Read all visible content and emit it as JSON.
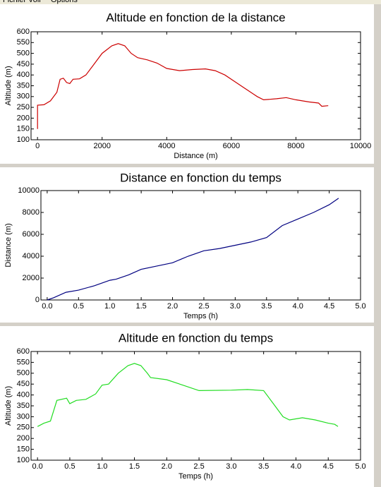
{
  "menu": [
    "Fichier",
    "Voir",
    "Options"
  ],
  "chart_data": [
    {
      "type": "line",
      "title": "Altitude en fonction de la distance",
      "xlabel": "Distance (m)",
      "ylabel": "Altitude (m)",
      "color": "#cc0000",
      "x": [
        0,
        0,
        200,
        400,
        600,
        700,
        800,
        900,
        1000,
        1100,
        1300,
        1500,
        1700,
        2000,
        2300,
        2500,
        2700,
        2900,
        3100,
        3400,
        3700,
        4000,
        4400,
        4800,
        5200,
        5500,
        5800,
        6100,
        6400,
        6700,
        6800,
        7000,
        7400,
        7700,
        8000,
        8400,
        8700,
        8800,
        9000
      ],
      "values": [
        150,
        260,
        262,
        280,
        320,
        380,
        385,
        365,
        360,
        380,
        382,
        400,
        440,
        500,
        535,
        545,
        535,
        500,
        480,
        470,
        455,
        430,
        420,
        425,
        428,
        420,
        400,
        370,
        340,
        310,
        300,
        285,
        290,
        295,
        285,
        275,
        270,
        255,
        258
      ],
      "xlim": [
        -200,
        10000
      ],
      "xticks": [
        0,
        2000,
        4000,
        6000,
        8000,
        10000
      ],
      "ylim": [
        100,
        600
      ],
      "yticks": [
        100,
        150,
        200,
        250,
        300,
        350,
        400,
        450,
        500,
        550,
        600
      ]
    },
    {
      "type": "line",
      "title": "Distance en fonction du temps",
      "xlabel": "Temps (h)",
      "ylabel": "Distance (m)",
      "color": "#000080",
      "x": [
        0,
        0.1,
        0.3,
        0.5,
        0.75,
        1.0,
        1.1,
        1.3,
        1.5,
        1.75,
        2.0,
        2.25,
        2.5,
        2.75,
        3.0,
        3.25,
        3.5,
        3.75,
        4.0,
        4.25,
        4.5,
        4.65
      ],
      "values": [
        0,
        200,
        700,
        900,
        1300,
        1800,
        1900,
        2300,
        2800,
        3100,
        3400,
        4000,
        4500,
        4700,
        5000,
        5300,
        5700,
        6800,
        7400,
        8000,
        8700,
        9300
      ],
      "xlim": [
        -0.1,
        5.0
      ],
      "xticks": [
        {
          "value": 0,
          "label": "0.0"
        },
        0.5,
        {
          "value": 1,
          "label": "1.0"
        },
        1.5,
        {
          "value": 2,
          "label": "2.0"
        },
        2.5,
        {
          "value": 3,
          "label": "3.0"
        },
        3.5,
        {
          "value": 4,
          "label": "4.0"
        },
        4.5,
        {
          "value": 5,
          "label": "5.0"
        }
      ],
      "ylim": [
        0,
        10000
      ],
      "yticks": [
        0,
        2000,
        4000,
        6000,
        8000,
        10000
      ]
    },
    {
      "type": "line",
      "title": "Altitude en fonction du temps",
      "xlabel": "Temps (h)",
      "ylabel": "Altitude (m)",
      "color": "#22dd22",
      "x": [
        0,
        0.1,
        0.2,
        0.3,
        0.45,
        0.5,
        0.6,
        0.75,
        0.9,
        1.0,
        1.1,
        1.25,
        1.4,
        1.5,
        1.6,
        1.7,
        1.75,
        2.0,
        2.25,
        2.5,
        3.0,
        3.25,
        3.5,
        3.65,
        3.8,
        3.9,
        4.1,
        4.3,
        4.5,
        4.6,
        4.65
      ],
      "values": [
        255,
        270,
        280,
        375,
        385,
        360,
        375,
        380,
        405,
        445,
        450,
        500,
        535,
        545,
        535,
        500,
        480,
        470,
        445,
        420,
        422,
        425,
        420,
        360,
        300,
        285,
        295,
        285,
        270,
        265,
        255
      ],
      "xlim": [
        -0.1,
        5.0
      ],
      "xticks": [
        {
          "value": 0,
          "label": "0.0"
        },
        0.5,
        {
          "value": 1,
          "label": "1.0"
        },
        1.5,
        {
          "value": 2,
          "label": "2.0"
        },
        2.5,
        {
          "value": 3,
          "label": "3.0"
        },
        3.5,
        {
          "value": 4,
          "label": "4.0"
        },
        4.5,
        {
          "value": 5,
          "label": "5.0"
        }
      ],
      "ylim": [
        100,
        600
      ],
      "yticks": [
        100,
        150,
        200,
        250,
        300,
        350,
        400,
        450,
        500,
        550,
        600
      ]
    }
  ]
}
